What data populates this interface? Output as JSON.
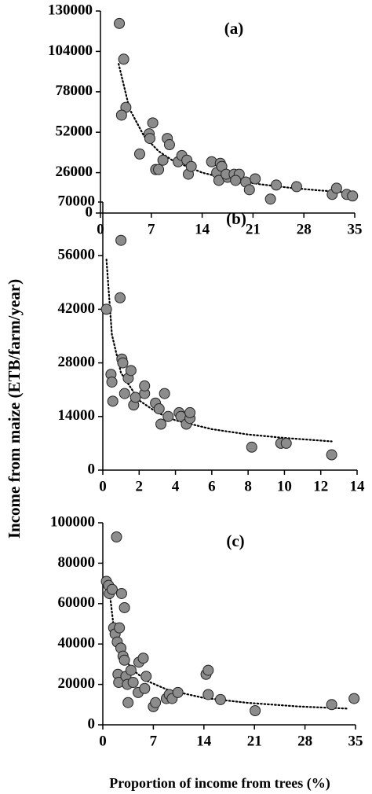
{
  "chart_data": [
    {
      "type": "scatter",
      "title": "(a)",
      "ylabel": "Income from maize (ETB/farm/year)",
      "color": "#8c8c8c",
      "x": [
        2.6,
        3.2,
        3.5,
        2.9,
        5.4,
        7.2,
        6.7,
        6.8,
        7.6,
        8.0,
        8.6,
        9.2,
        9.5,
        10.7,
        11.2,
        11.9,
        12.1,
        12.5,
        15.3,
        16.0,
        16.5,
        16.7,
        16.3,
        17.5,
        17.3,
        18.4,
        19.1,
        18.6,
        20.0,
        20.5,
        21.3,
        23.4,
        24.2,
        27.0,
        31.9,
        32.5,
        33.9,
        34.7
      ],
      "values": [
        122000,
        99000,
        68000,
        63000,
        38000,
        58000,
        51000,
        48000,
        28000,
        28000,
        34000,
        48000,
        44000,
        33000,
        37000,
        34000,
        25000,
        30000,
        33000,
        26000,
        32000,
        30000,
        21000,
        23000,
        25000,
        25000,
        25000,
        21000,
        20000,
        15000,
        22000,
        9000,
        18000,
        17000,
        12000,
        16000,
        12000,
        11000
      ],
      "trend": {
        "x": [
          2.5,
          4,
          6,
          8,
          10,
          14,
          18,
          22,
          26,
          30,
          35
        ],
        "values": [
          96000,
          67000,
          49500,
          39800,
          33600,
          26000,
          21500,
          18500,
          16300,
          14600,
          13000
        ]
      },
      "xlim": [
        0,
        35
      ],
      "ylim": [
        0,
        130000
      ],
      "xticks": [
        0,
        7,
        14,
        21,
        28,
        35
      ],
      "yticks": [
        0,
        26000,
        52000,
        78000,
        104000,
        130000
      ]
    },
    {
      "type": "scatter",
      "title": "(b)",
      "color": "#8c8c8c",
      "x": [
        0.2,
        0.45,
        0.5,
        0.55,
        0.95,
        1.0,
        1.05,
        1.1,
        1.2,
        1.4,
        1.55,
        1.7,
        1.8,
        2.3,
        2.3,
        2.9,
        3.1,
        3.2,
        3.4,
        3.6,
        4.2,
        4.3,
        4.6,
        4.8,
        4.8,
        8.2,
        9.8,
        10.1,
        12.6
      ],
      "values": [
        42000,
        25000,
        23000,
        18000,
        45000,
        60000,
        29000,
        28000,
        20000,
        24000,
        26000,
        17000,
        19000,
        20000,
        22000,
        17500,
        16000,
        12000,
        20000,
        14000,
        15000,
        14000,
        12000,
        13500,
        15000,
        6000,
        7000,
        7000,
        4000
      ],
      "trend": {
        "x": [
          0.2,
          0.5,
          1,
          2,
          3,
          4,
          6,
          8,
          10,
          12.6
        ],
        "values": [
          55000,
          35400,
          25400,
          18200,
          15000,
          13000,
          10700,
          9300,
          8400,
          7500
        ]
      },
      "xlim": [
        0,
        14
      ],
      "ylim": [
        0,
        70000
      ],
      "xticks": [
        0,
        2,
        4,
        6,
        8,
        10,
        12,
        14
      ],
      "yticks": [
        0,
        14000,
        28000,
        42000,
        56000,
        70000
      ]
    },
    {
      "type": "scatter",
      "title": "(c)",
      "xlabel": "Proportion of income from trees (%)",
      "color": "#8c8c8c",
      "x": [
        0.5,
        0.8,
        0.9,
        1.3,
        1.5,
        1.7,
        1.9,
        2.0,
        2.1,
        2.2,
        2.3,
        2.5,
        2.6,
        2.8,
        3.0,
        3.0,
        3.2,
        3.4,
        3.5,
        3.9,
        4.2,
        4.9,
        5.0,
        5.6,
        5.8,
        6.0,
        7.0,
        7.3,
        8.8,
        9.2,
        9.6,
        10.4,
        14.3,
        14.6,
        14.6,
        16.3,
        21.1,
        31.7,
        34.8
      ],
      "values": [
        71000,
        69000,
        65000,
        67000,
        48000,
        45000,
        93000,
        41000,
        25000,
        21000,
        48000,
        38000,
        65000,
        34000,
        58000,
        32000,
        24000,
        20000,
        11000,
        27000,
        21000,
        16000,
        31000,
        33000,
        18000,
        24000,
        9000,
        11000,
        13000,
        15000,
        13000,
        16000,
        25000,
        27000,
        15000,
        12500,
        7000,
        10000,
        13000
      ],
      "trend": {
        "x": [
          0.8,
          1.5,
          2.5,
          4,
          6,
          9,
          14,
          20,
          27,
          34
        ],
        "values": [
          70000,
          48600,
          36300,
          27600,
          21900,
          17300,
          13300,
          10900,
          9100,
          8000
        ]
      },
      "xlim": [
        0,
        35
      ],
      "ylim": [
        0,
        100000
      ],
      "xticks": [
        0,
        7,
        14,
        21,
        28,
        35
      ],
      "yticks": [
        0,
        20000,
        40000,
        60000,
        80000,
        100000
      ]
    }
  ]
}
